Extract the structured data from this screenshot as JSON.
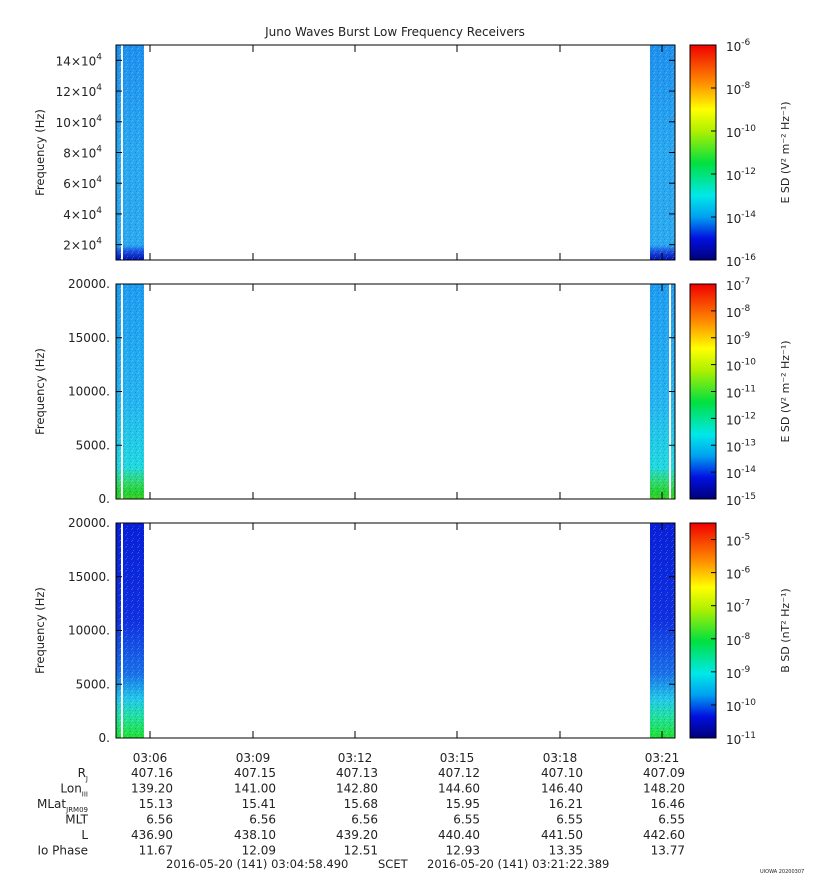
{
  "title": "Juno Waves Burst Low Frequency Receivers",
  "footer": {
    "start": "2016-05-20 (141) 03:04:58.490",
    "scet": "SCET",
    "end": "2016-05-20 (141) 03:21:22.389",
    "stamp": "UIOWA 20200307"
  },
  "colors": {
    "dark_blue": "#0008a0",
    "blue": "#1a48e0",
    "light_blue": "#1e9cf0",
    "cyan": "#22e6e6",
    "green": "#20d040",
    "yellow": "#f0f000",
    "red": "#f00000"
  },
  "chart_data": [
    {
      "type": "heatmap",
      "panel": 1,
      "ylabel": "Frequency (Hz)",
      "ylim": [
        10000,
        150000
      ],
      "yticks": [
        {
          "value": 20000,
          "base": "2×10",
          "exp": "4"
        },
        {
          "value": 40000,
          "base": "4×10",
          "exp": "4"
        },
        {
          "value": 60000,
          "base": "6×10",
          "exp": "4"
        },
        {
          "value": 80000,
          "base": "8×10",
          "exp": "4"
        },
        {
          "value": 100000,
          "base": "10×10",
          "exp": "4"
        },
        {
          "value": 120000,
          "base": "12×10",
          "exp": "4"
        },
        {
          "value": 140000,
          "base": "14×10",
          "exp": "4"
        }
      ],
      "colorbar": {
        "label": "E SD (V² m⁻² Hz⁻¹)",
        "scale": "log",
        "range": [
          -16,
          -6
        ],
        "ticks": [
          {
            "value": -6,
            "base": "10",
            "exp": "-6"
          },
          {
            "value": -8,
            "base": "10",
            "exp": "-8"
          },
          {
            "value": -10,
            "base": "10",
            "exp": "-10"
          },
          {
            "value": -12,
            "base": "10",
            "exp": "-12"
          },
          {
            "value": -14,
            "base": "10",
            "exp": "-14"
          },
          {
            "value": -16,
            "base": "10",
            "exp": "-16"
          }
        ]
      },
      "data_intervals": [
        "03:04:58 – 03:06:00",
        "03:20:45 – 03:21:22"
      ],
      "dominant_color": "light_blue"
    },
    {
      "type": "heatmap",
      "panel": 2,
      "ylabel": "Frequency (Hz)",
      "ylim": [
        0,
        20000
      ],
      "yticks": [
        {
          "value": 0,
          "label": "0."
        },
        {
          "value": 5000,
          "label": "5000."
        },
        {
          "value": 10000,
          "label": "10000."
        },
        {
          "value": 15000,
          "label": "15000."
        },
        {
          "value": 20000,
          "label": "20000."
        }
      ],
      "colorbar": {
        "label": "E SD (V² m⁻² Hz⁻¹)",
        "scale": "log",
        "range": [
          -15,
          -7
        ],
        "ticks": [
          {
            "value": -7,
            "base": "10",
            "exp": "-7"
          },
          {
            "value": -8,
            "base": "10",
            "exp": "-8"
          },
          {
            "value": -9,
            "base": "10",
            "exp": "-9"
          },
          {
            "value": -10,
            "base": "10",
            "exp": "-10"
          },
          {
            "value": -11,
            "base": "10",
            "exp": "-11"
          },
          {
            "value": -12,
            "base": "10",
            "exp": "-12"
          },
          {
            "value": -13,
            "base": "10",
            "exp": "-13"
          },
          {
            "value": -14,
            "base": "10",
            "exp": "-14"
          },
          {
            "value": -15,
            "base": "10",
            "exp": "-15"
          }
        ]
      },
      "data_intervals": [
        "03:04:58 – 03:06:00",
        "03:20:45 – 03:21:22"
      ],
      "dominant_color": "light_blue"
    },
    {
      "type": "heatmap",
      "panel": 3,
      "ylabel": "Frequency (Hz)",
      "ylim": [
        0,
        20000
      ],
      "yticks": [
        {
          "value": 0,
          "label": "0."
        },
        {
          "value": 5000,
          "label": "5000."
        },
        {
          "value": 10000,
          "label": "10000."
        },
        {
          "value": 15000,
          "label": "15000."
        },
        {
          "value": 20000,
          "label": "20000."
        }
      ],
      "colorbar": {
        "label": "B SD (nT² Hz⁻¹)",
        "scale": "log",
        "range": [
          -11,
          -4.5
        ],
        "ticks": [
          {
            "value": -5,
            "base": "10",
            "exp": "-5"
          },
          {
            "value": -6,
            "base": "10",
            "exp": "-6"
          },
          {
            "value": -7,
            "base": "10",
            "exp": "-7"
          },
          {
            "value": -8,
            "base": "10",
            "exp": "-8"
          },
          {
            "value": -9,
            "base": "10",
            "exp": "-9"
          },
          {
            "value": -10,
            "base": "10",
            "exp": "-10"
          },
          {
            "value": -11,
            "base": "10",
            "exp": "-11"
          }
        ]
      },
      "data_intervals": [
        "03:04:58 – 03:06:00",
        "03:20:45 – 03:21:22"
      ],
      "dominant_color": "blue"
    }
  ],
  "x_axis": {
    "range": [
      "03:04:58.490",
      "03:21:22.389"
    ],
    "ticks": [
      "03:06",
      "03:09",
      "03:12",
      "03:15",
      "03:18",
      "03:21"
    ]
  },
  "ephemeris": {
    "rows": [
      {
        "label": "R",
        "sub": "J",
        "values": [
          "407.16",
          "407.15",
          "407.13",
          "407.12",
          "407.10",
          "407.09"
        ]
      },
      {
        "label": "Lon",
        "sub": "III",
        "values": [
          "139.20",
          "141.00",
          "142.80",
          "144.60",
          "146.40",
          "148.20"
        ]
      },
      {
        "label": "MLat",
        "sub": "JRM09",
        "values": [
          "15.13",
          "15.41",
          "15.68",
          "15.95",
          "16.21",
          "16.46"
        ]
      },
      {
        "label": "MLT",
        "sub": "",
        "values": [
          "6.56",
          "6.56",
          "6.56",
          "6.55",
          "6.55",
          "6.55"
        ]
      },
      {
        "label": "L",
        "sub": "",
        "values": [
          "436.90",
          "438.10",
          "439.20",
          "440.40",
          "441.50",
          "442.60"
        ]
      },
      {
        "label": "Io Phase",
        "sub": "",
        "values": [
          "11.67",
          "12.09",
          "12.51",
          "12.93",
          "13.35",
          "13.77"
        ]
      }
    ]
  }
}
